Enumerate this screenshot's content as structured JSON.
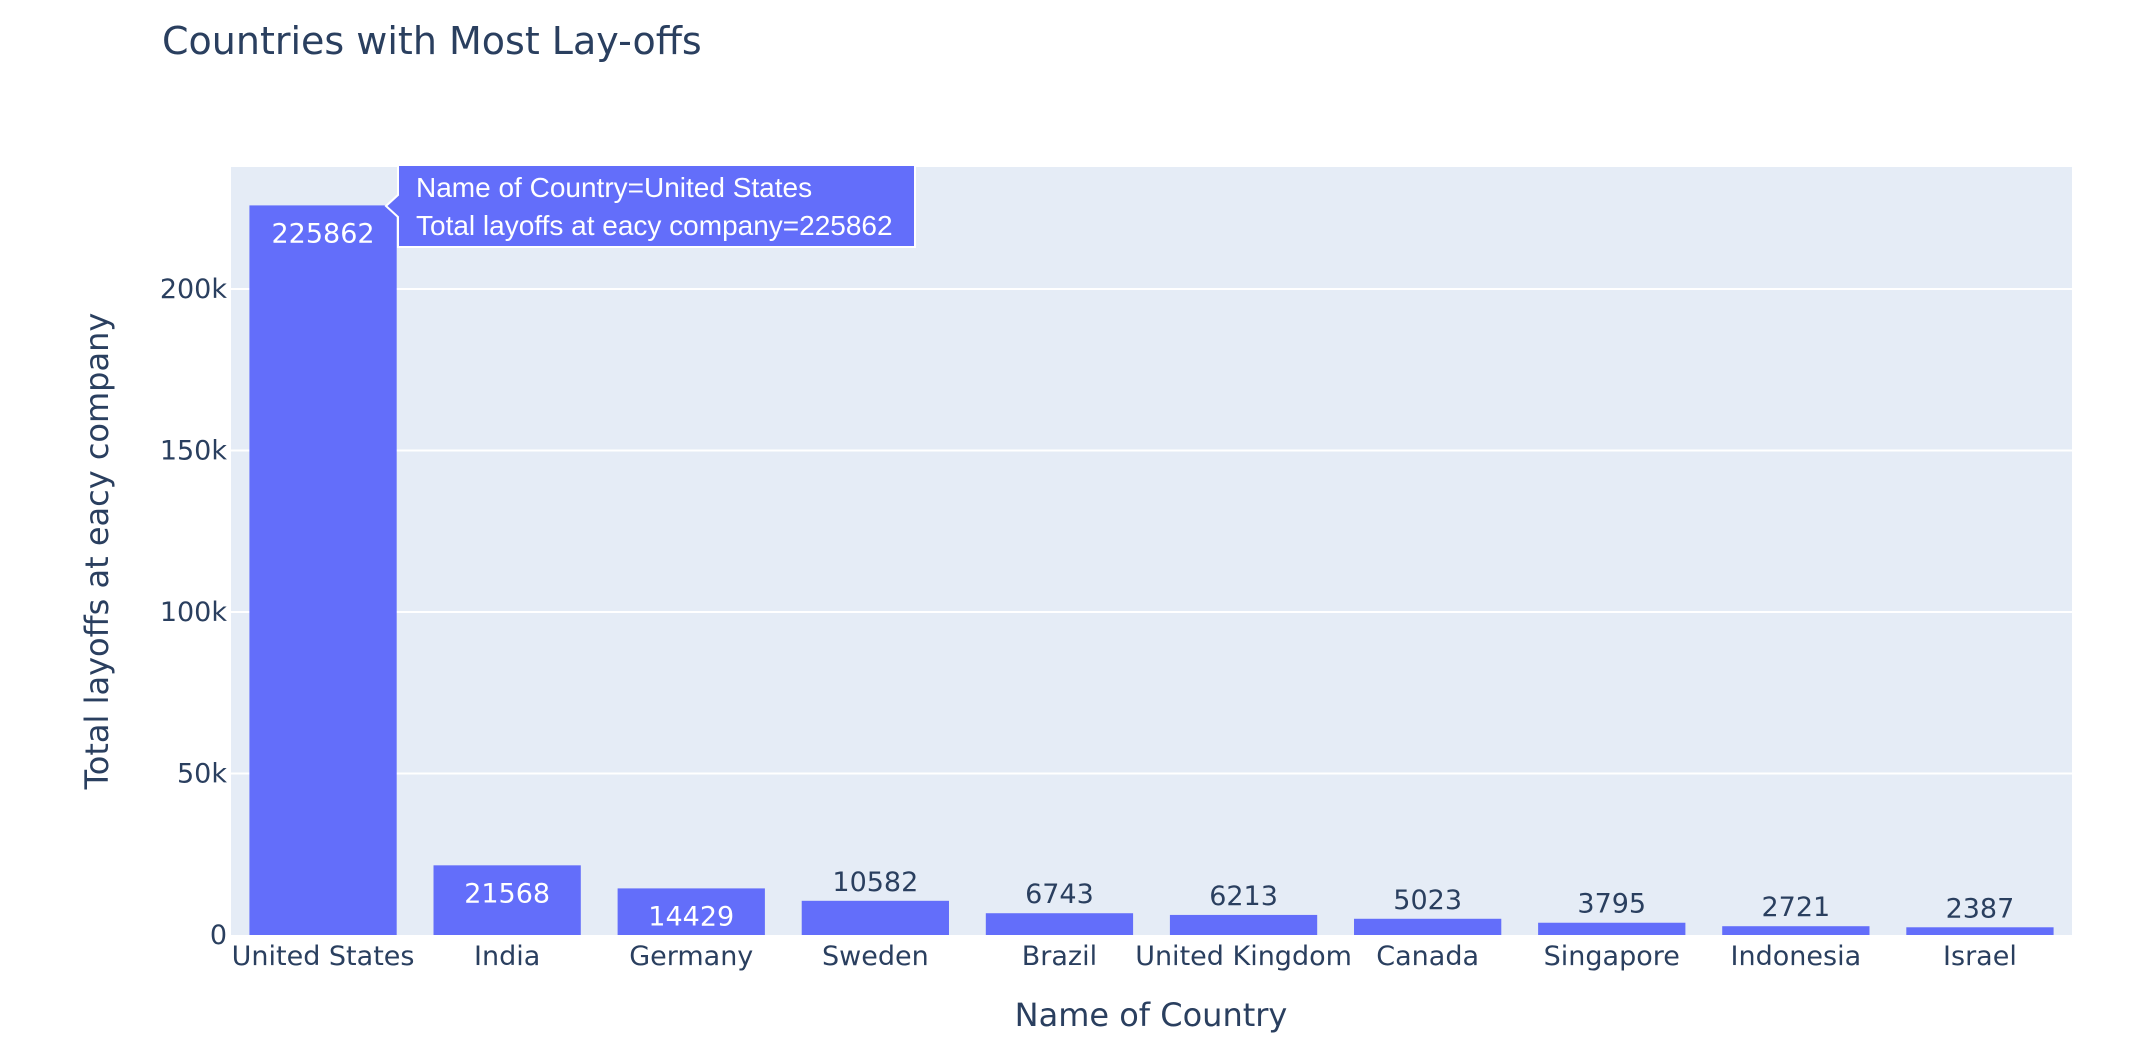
{
  "chart_data": {
    "type": "bar",
    "title": "Countries with Most Lay-offs",
    "xlabel": "Name of Country",
    "ylabel": "Total layoffs at eacy company",
    "categories": [
      "United States",
      "India",
      "Germany",
      "Sweden",
      "Brazil",
      "United Kingdom",
      "Canada",
      "Singapore",
      "Indonesia",
      "Israel"
    ],
    "values": [
      225862,
      21568,
      14429,
      10582,
      6743,
      6213,
      5023,
      3795,
      2721,
      2387
    ],
    "value_labels": [
      "225862",
      "21568",
      "14429",
      "10582",
      "6743",
      "6213",
      "5023",
      "3795",
      "2721",
      "2387"
    ],
    "yticks": [
      0,
      50000,
      100000,
      150000,
      200000
    ],
    "ytick_labels": [
      "0",
      "50k",
      "100k",
      "150k",
      "200k"
    ],
    "ylim": [
      0,
      237749
    ],
    "grid": true,
    "legend": "none"
  },
  "tooltip": {
    "line1": "Name of Country=United States",
    "line2": "Total layoffs at eacy company=225862"
  },
  "colors": {
    "bar": "#636efa",
    "plot_bg": "#e5ecf6",
    "grid": "#ffffff",
    "text": "#2a3f5f",
    "tooltip_bg": "#636efa",
    "tooltip_text": "#ffffff"
  }
}
